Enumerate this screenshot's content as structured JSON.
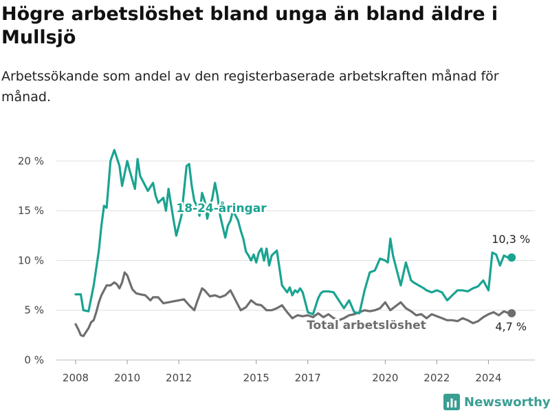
{
  "title": "Högre arbetslöshet bland unga än bland äldre i Mullsjö",
  "subtitle": "Arbetssökande som andel av den registerbaserade arbetskraften månad för månad.",
  "brand": "Newsworthy",
  "colors": {
    "young": "#1aa391",
    "total": "#6e6e6e",
    "grid": "#dddddd",
    "brand": "#3a9e93"
  },
  "chart_data": {
    "type": "line",
    "ylim": [
      0,
      22
    ],
    "yticks": [
      {
        "value": 0,
        "label": "0 %"
      },
      {
        "value": 5,
        "label": "5 %"
      },
      {
        "value": 10,
        "label": "10 %"
      },
      {
        "value": 15,
        "label": "15 %"
      },
      {
        "value": 20,
        "label": "20 %"
      }
    ],
    "xlim": [
      2007.2,
      2025.8
    ],
    "xticks": [
      {
        "value": 2008,
        "label": "2008"
      },
      {
        "value": 2010,
        "label": "2010"
      },
      {
        "value": 2012,
        "label": "2012"
      },
      {
        "value": 2015,
        "label": "2015"
      },
      {
        "value": 2017,
        "label": "2017"
      },
      {
        "value": 2020,
        "label": "2020"
      },
      {
        "value": 2022,
        "label": "2022"
      },
      {
        "value": 2024,
        "label": "2024"
      }
    ],
    "series": [
      {
        "name": "18-24-åringar",
        "color": "#1aa391",
        "end_label": "10,3 %",
        "x": [
          2008.0,
          2008.2,
          2008.3,
          2008.5,
          2008.7,
          2008.9,
          2009.0,
          2009.1,
          2009.2,
          2009.35,
          2009.5,
          2009.6,
          2009.7,
          2009.8,
          2010.0,
          2010.1,
          2010.3,
          2010.4,
          2010.5,
          2010.6,
          2010.8,
          2011.0,
          2011.1,
          2011.2,
          2011.4,
          2011.5,
          2011.6,
          2011.8,
          2011.9,
          2012.1,
          2012.2,
          2012.3,
          2012.4,
          2012.5,
          2012.6,
          2012.7,
          2012.8,
          2012.9,
          2013.0,
          2013.1,
          2013.3,
          2013.4,
          2013.5,
          2013.6,
          2013.8,
          2013.9,
          2014.0,
          2014.1,
          2014.2,
          2014.3,
          2014.4,
          2014.5,
          2014.6,
          2014.7,
          2014.8,
          2014.9,
          2015.0,
          2015.1,
          2015.2,
          2015.3,
          2015.4,
          2015.5,
          2015.6,
          2015.8,
          2016.0,
          2016.2,
          2016.3,
          2016.4,
          2016.5,
          2016.6,
          2016.7,
          2016.8,
          2017.0,
          2017.2,
          2017.4,
          2017.5,
          2017.6,
          2017.8,
          2018.0,
          2018.2,
          2018.4,
          2018.6,
          2018.8,
          2019.0,
          2019.2,
          2019.4,
          2019.6,
          2019.8,
          2020.0,
          2020.1,
          2020.2,
          2020.3,
          2020.5,
          2020.6,
          2020.8,
          2021.0,
          2021.1,
          2021.3,
          2021.5,
          2021.6,
          2021.8,
          2022.0,
          2022.2,
          2022.4,
          2022.6,
          2022.8,
          2023.0,
          2023.2,
          2023.4,
          2023.6,
          2023.8,
          2024.0,
          2024.15,
          2024.3,
          2024.45,
          2024.6,
          2024.75,
          2024.9
        ],
        "y": [
          6.6,
          6.6,
          5.0,
          4.9,
          7.5,
          11.0,
          13.5,
          15.5,
          15.3,
          20.0,
          21.1,
          20.3,
          19.5,
          17.5,
          20.0,
          19.0,
          17.2,
          20.2,
          18.5,
          18.0,
          17.0,
          17.8,
          16.5,
          15.8,
          16.3,
          15.0,
          17.2,
          14.0,
          12.5,
          14.5,
          17.0,
          19.5,
          19.7,
          17.5,
          16.0,
          15.5,
          14.5,
          16.8,
          16.0,
          14.2,
          16.3,
          17.8,
          16.5,
          14.5,
          12.3,
          13.5,
          14.0,
          15.0,
          14.5,
          14.0,
          13.0,
          12.2,
          10.9,
          10.5,
          10.0,
          10.6,
          9.8,
          10.8,
          11.2,
          10.0,
          11.2,
          9.5,
          10.5,
          11.0,
          7.5,
          6.8,
          7.3,
          6.5,
          7.0,
          6.8,
          7.2,
          6.8,
          4.8,
          4.6,
          6.2,
          6.7,
          6.9,
          6.9,
          6.8,
          6.0,
          5.2,
          6.0,
          4.8,
          4.7,
          7.0,
          8.8,
          9.0,
          10.2,
          10.0,
          9.8,
          12.2,
          10.5,
          8.5,
          7.5,
          9.8,
          8.0,
          7.8,
          7.5,
          7.2,
          7.0,
          6.8,
          7.0,
          6.8,
          6.0,
          6.5,
          7.0,
          7.0,
          6.9,
          7.2,
          7.4,
          8.0,
          7.0,
          10.8,
          10.6,
          9.5,
          10.5,
          10.3,
          10.3
        ]
      },
      {
        "name": "Total arbetslöshet",
        "color": "#6e6e6e",
        "end_label": "4,7 %",
        "x": [
          2008.0,
          2008.1,
          2008.2,
          2008.3,
          2008.4,
          2008.5,
          2008.6,
          2008.7,
          2008.8,
          2008.9,
          2009.0,
          2009.1,
          2009.2,
          2009.35,
          2009.5,
          2009.6,
          2009.7,
          2009.8,
          2009.9,
          2010.0,
          2010.1,
          2010.2,
          2010.35,
          2010.5,
          2010.7,
          2010.9,
          2011.0,
          2011.2,
          2011.4,
          2011.6,
          2011.8,
          2012.0,
          2012.2,
          2012.4,
          2012.6,
          2012.7,
          2012.8,
          2012.9,
          2013.0,
          2013.2,
          2013.4,
          2013.6,
          2013.8,
          2014.0,
          2014.2,
          2014.4,
          2014.6,
          2014.8,
          2015.0,
          2015.2,
          2015.4,
          2015.6,
          2015.8,
          2016.0,
          2016.2,
          2016.4,
          2016.6,
          2016.8,
          2017.0,
          2017.2,
          2017.4,
          2017.6,
          2017.8,
          2018.0,
          2018.2,
          2018.4,
          2018.6,
          2018.8,
          2019.0,
          2019.2,
          2019.4,
          2019.6,
          2019.8,
          2020.0,
          2020.2,
          2020.4,
          2020.6,
          2020.8,
          2021.0,
          2021.2,
          2021.4,
          2021.6,
          2021.8,
          2022.0,
          2022.2,
          2022.4,
          2022.6,
          2022.8,
          2023.0,
          2023.2,
          2023.4,
          2023.6,
          2023.8,
          2024.0,
          2024.2,
          2024.4,
          2024.6,
          2024.8,
          2024.9
        ],
        "y": [
          3.6,
          3.1,
          2.5,
          2.4,
          2.8,
          3.2,
          3.8,
          4.0,
          4.8,
          5.8,
          6.5,
          7.0,
          7.5,
          7.5,
          7.8,
          7.6,
          7.2,
          7.8,
          8.8,
          8.5,
          7.8,
          7.1,
          6.7,
          6.6,
          6.5,
          6.0,
          6.3,
          6.3,
          5.7,
          5.8,
          5.9,
          6.0,
          6.1,
          5.5,
          5.0,
          5.8,
          6.5,
          7.2,
          7.0,
          6.4,
          6.5,
          6.3,
          6.5,
          7.0,
          6.0,
          5.0,
          5.3,
          6.0,
          5.6,
          5.5,
          5.0,
          5.0,
          5.2,
          5.5,
          4.8,
          4.2,
          4.5,
          4.4,
          4.5,
          4.3,
          4.7,
          4.3,
          4.6,
          4.2,
          4.0,
          4.2,
          4.5,
          4.6,
          4.8,
          5.0,
          4.9,
          5.0,
          5.2,
          5.8,
          5.0,
          5.4,
          5.8,
          5.2,
          4.9,
          4.5,
          4.6,
          4.2,
          4.6,
          4.4,
          4.2,
          4.0,
          4.0,
          3.9,
          4.2,
          4.0,
          3.7,
          3.9,
          4.3,
          4.6,
          4.8,
          4.5,
          4.9,
          4.7,
          4.7
        ]
      }
    ]
  }
}
